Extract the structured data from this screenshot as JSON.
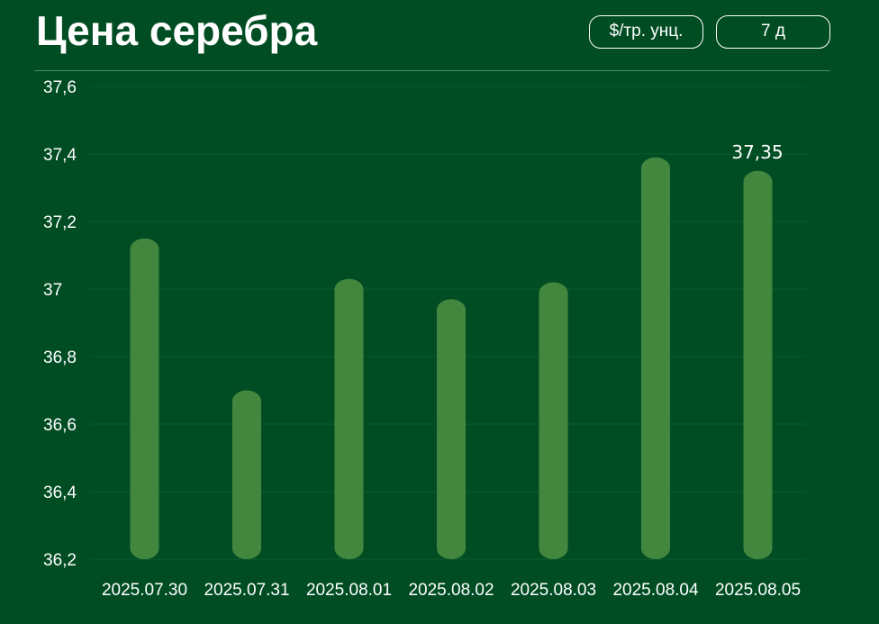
{
  "header": {
    "title": "Цена серебра",
    "unit_button": "$/тр. унц.",
    "range_button": "7 д"
  },
  "colors": {
    "background": "#004d23",
    "bar": "#43873f",
    "text": "#ffffff"
  },
  "chart_data": {
    "type": "bar",
    "title": "Цена серебра",
    "xlabel": "",
    "ylabel": "",
    "categories": [
      "2025.07.30",
      "2025.07.31",
      "2025.08.01",
      "2025.08.02",
      "2025.08.03",
      "2025.08.04",
      "2025.08.05"
    ],
    "values": [
      37.15,
      36.7,
      37.03,
      36.97,
      37.02,
      37.39,
      37.35
    ],
    "ylim": [
      36.2,
      37.6
    ],
    "yticks": [
      "36,2",
      "36,4",
      "36,6",
      "36,8",
      "37",
      "37,2",
      "37,4",
      "37,6"
    ],
    "data_labels": [
      {
        "index": 6,
        "text": "37,35"
      }
    ],
    "grid": true,
    "legend": "none"
  }
}
